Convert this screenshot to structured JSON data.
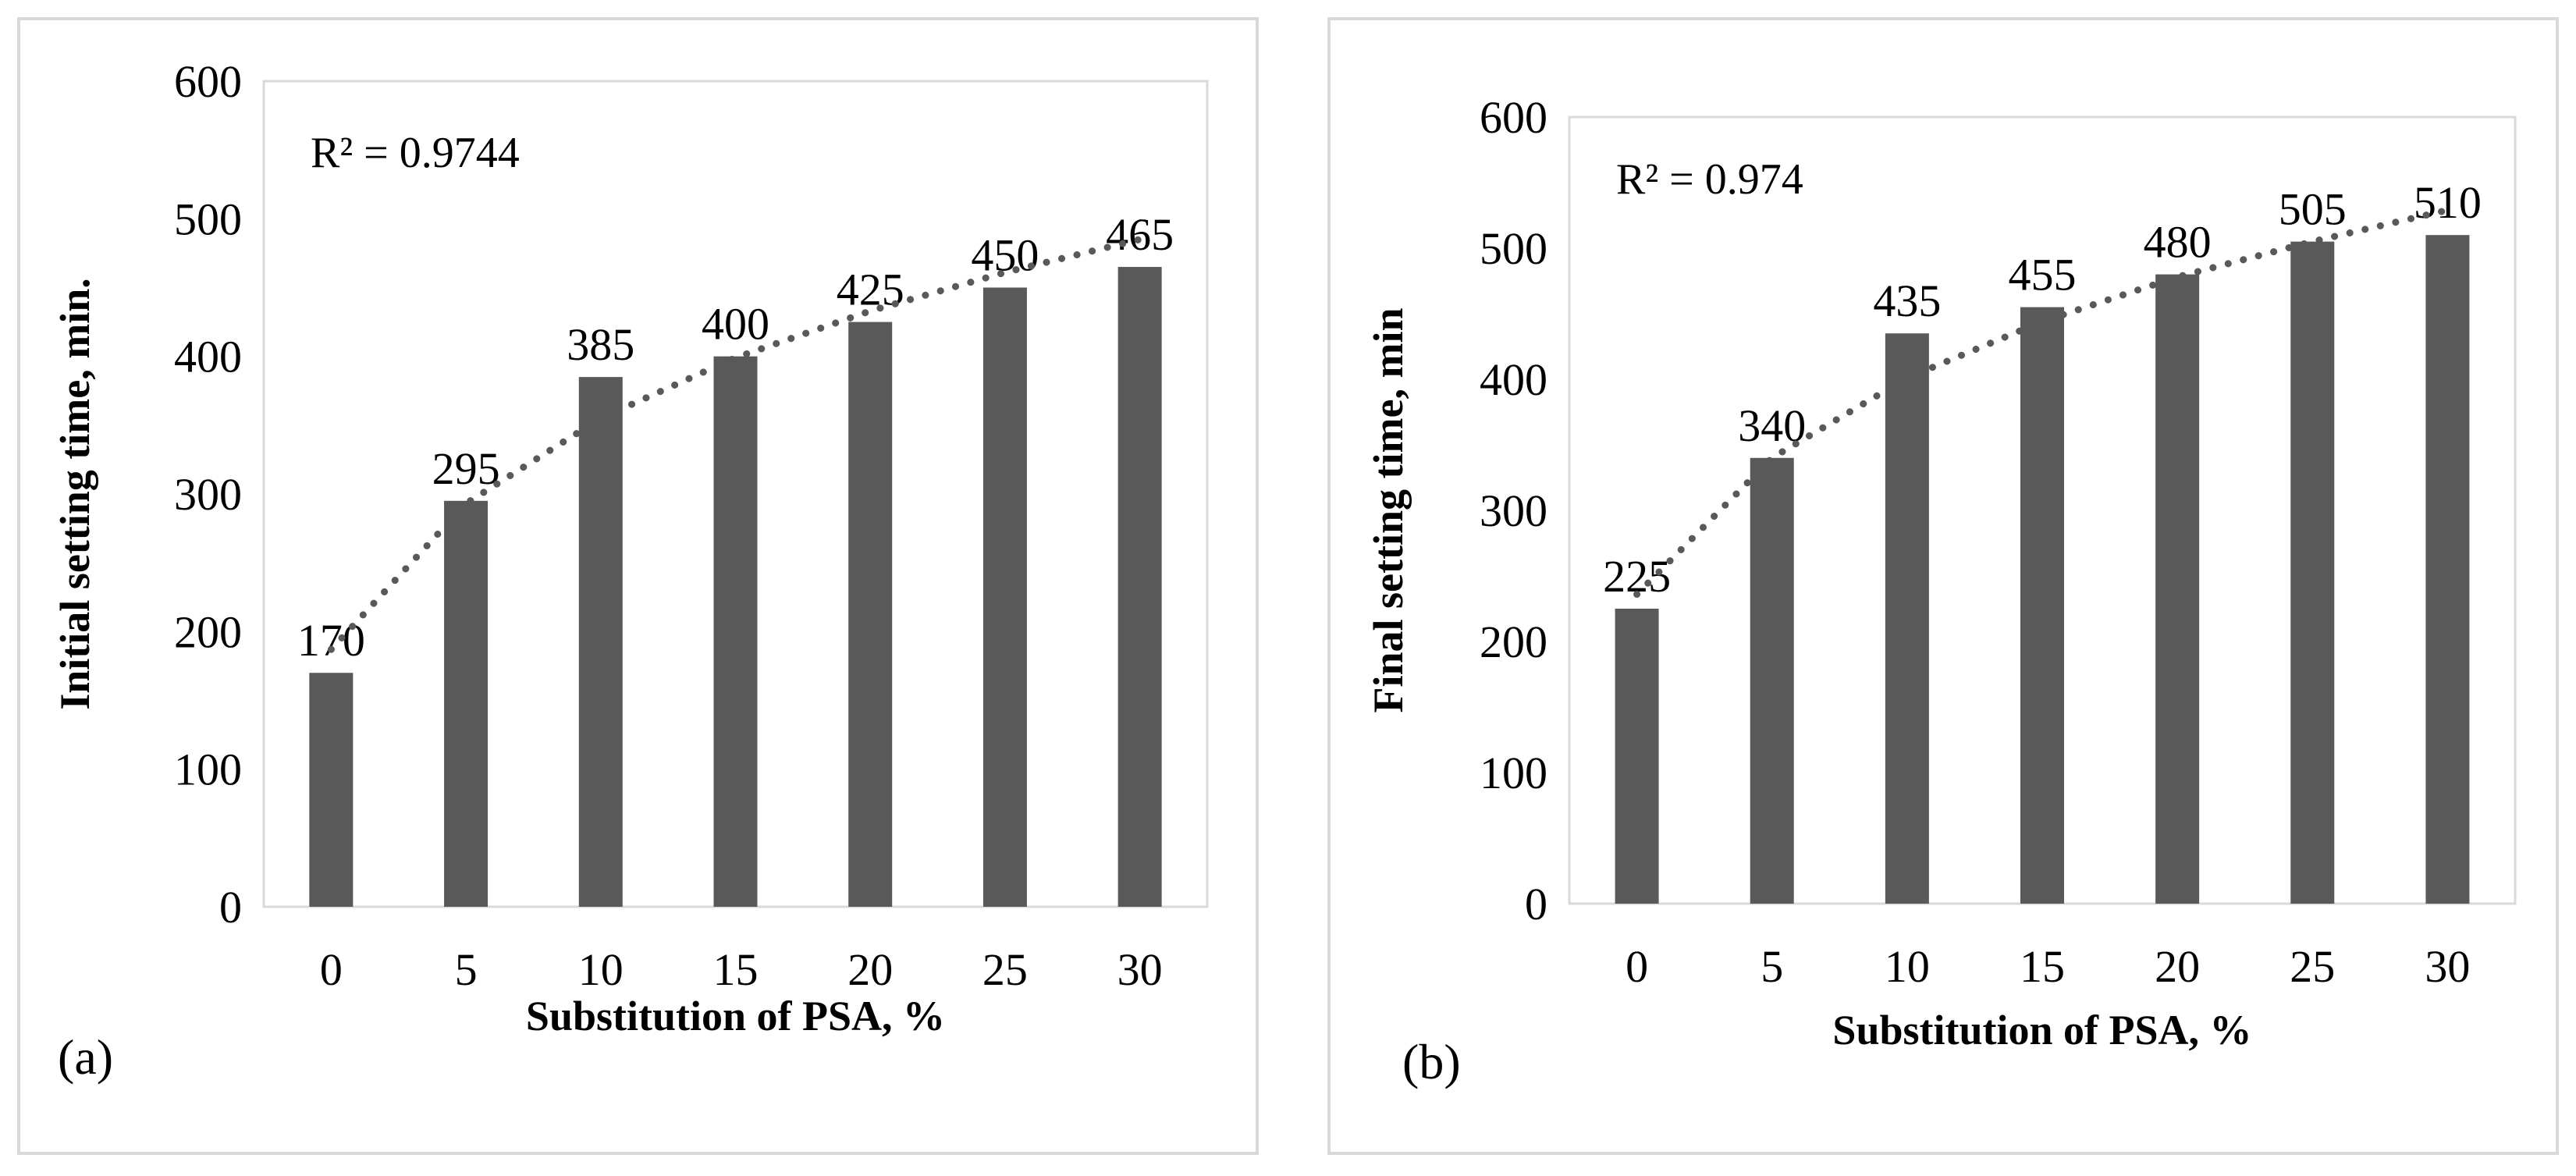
{
  "chart_data": [
    {
      "type": "bar",
      "panel_label": "(a)",
      "categories": [
        "0",
        "5",
        "10",
        "15",
        "20",
        "25",
        "30"
      ],
      "values": [
        170,
        295,
        385,
        400,
        425,
        450,
        465
      ],
      "data_labels": [
        "170",
        "295",
        "385",
        "400",
        "425",
        "450",
        "465"
      ],
      "xlabel": "Substitution of PSA, %",
      "ylabel": "Initial setting time, min.",
      "ylim": [
        0,
        600
      ],
      "yticks": [
        "0",
        "100",
        "200",
        "300",
        "400",
        "500",
        "600"
      ],
      "grid": false,
      "trendline": {
        "type": "logarithmic",
        "style": "dotted",
        "r_squared": "R² = 0.9744",
        "values": [
          187,
          293,
          355,
          399,
          433,
          461,
          485
        ]
      },
      "bar_color": "#595959"
    },
    {
      "type": "bar",
      "panel_label": "(b)",
      "categories": [
        "0",
        "5",
        "10",
        "15",
        "20",
        "25",
        "30"
      ],
      "values": [
        225,
        340,
        435,
        455,
        480,
        505,
        510
      ],
      "data_labels": [
        "225",
        "340",
        "435",
        "455",
        "480",
        "505",
        "510"
      ],
      "xlabel": "Substitution of PSA, %",
      "ylabel": "Final setting time, min",
      "ylim": [
        0,
        600
      ],
      "yticks": [
        "0",
        "100",
        "200",
        "300",
        "400",
        "500",
        "600"
      ],
      "grid": false,
      "trendline": {
        "type": "logarithmic",
        "style": "dotted",
        "r_squared": "R² = 0.974",
        "values": [
          236,
          340,
          401,
          444,
          478,
          505,
          529
        ]
      },
      "bar_color": "#595959"
    }
  ]
}
